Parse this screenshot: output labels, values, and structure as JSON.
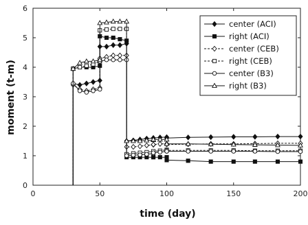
{
  "chart_data": {
    "type": "line",
    "xlabel": "time (day)",
    "ylabel": "moment (t-m)",
    "xlim": [
      0,
      200
    ],
    "ylim": [
      0,
      6
    ],
    "xticks": [
      0,
      50,
      100,
      150,
      200
    ],
    "yticks": [
      0,
      1,
      2,
      3,
      4,
      5,
      6
    ],
    "grid": false,
    "legend_position": "top-right",
    "series": [
      {
        "name": "center (ACI)",
        "line": "solid",
        "marker": "diamond-filled",
        "x": [
          30,
          30,
          35,
          40,
          45,
          50,
          50,
          55,
          60,
          65,
          70,
          70,
          75,
          80,
          85,
          90,
          90,
          95,
          100,
          100,
          116,
          133,
          150,
          166,
          183,
          200
        ],
        "y": [
          0,
          3.45,
          3.4,
          3.45,
          3.5,
          3.55,
          4.7,
          4.7,
          4.75,
          4.75,
          4.8,
          1.5,
          1.52,
          1.55,
          1.58,
          1.6,
          1.6,
          1.62,
          1.63,
          1.6,
          1.62,
          1.63,
          1.64,
          1.64,
          1.65,
          1.65
        ]
      },
      {
        "name": "right (ACI)",
        "line": "solid",
        "marker": "square-filled",
        "x": [
          30,
          30,
          35,
          40,
          45,
          50,
          50,
          55,
          60,
          65,
          70,
          70,
          75,
          80,
          85,
          90,
          90,
          95,
          100,
          100,
          116,
          133,
          150,
          166,
          183,
          200
        ],
        "y": [
          0,
          3.95,
          4.0,
          4.0,
          4.0,
          4.05,
          5.05,
          5.0,
          5.0,
          4.95,
          4.9,
          0.95,
          0.95,
          0.95,
          0.95,
          0.95,
          0.95,
          0.95,
          0.95,
          0.85,
          0.83,
          0.8,
          0.8,
          0.8,
          0.8,
          0.8
        ]
      },
      {
        "name": "center (CEB)",
        "line": "dashed",
        "marker": "diamond-open",
        "x": [
          30,
          30,
          35,
          40,
          45,
          50,
          50,
          55,
          60,
          65,
          70,
          70,
          75,
          80,
          85,
          90,
          90,
          95,
          100,
          100,
          116,
          133,
          150,
          166,
          183,
          200
        ],
        "y": [
          0,
          3.4,
          3.25,
          3.2,
          3.25,
          3.3,
          4.3,
          4.35,
          4.4,
          4.4,
          4.4,
          1.3,
          1.3,
          1.32,
          1.35,
          1.37,
          1.38,
          1.4,
          1.4,
          1.38,
          1.39,
          1.4,
          1.4,
          1.41,
          1.42,
          1.42
        ]
      },
      {
        "name": "right (CEB)",
        "line": "dashed",
        "marker": "square-open",
        "x": [
          30,
          30,
          35,
          40,
          45,
          50,
          50,
          55,
          60,
          65,
          70,
          70,
          75,
          80,
          85,
          90,
          90,
          95,
          100,
          100,
          116,
          133,
          150,
          166,
          183,
          200
        ],
        "y": [
          0,
          3.95,
          4.0,
          4.05,
          4.1,
          4.2,
          5.25,
          5.28,
          5.3,
          5.3,
          5.3,
          1.05,
          1.08,
          1.1,
          1.12,
          1.15,
          1.15,
          1.17,
          1.2,
          1.18,
          1.18,
          1.18,
          1.18,
          1.17,
          1.17,
          1.17
        ]
      },
      {
        "name": "center (B3)",
        "line": "solid",
        "marker": "circle-open",
        "x": [
          30,
          30,
          35,
          40,
          45,
          50,
          50,
          55,
          60,
          65,
          70,
          70,
          75,
          80,
          85,
          90,
          90,
          95,
          100,
          100,
          116,
          133,
          150,
          166,
          183,
          200
        ],
        "y": [
          0,
          3.45,
          3.2,
          3.15,
          3.2,
          3.25,
          4.2,
          4.25,
          4.25,
          4.25,
          4.25,
          1.0,
          1.02,
          1.03,
          1.05,
          1.07,
          1.1,
          1.12,
          1.15,
          1.15,
          1.15,
          1.15,
          1.15,
          1.15,
          1.14,
          1.14
        ]
      },
      {
        "name": "right (B3)",
        "line": "solid",
        "marker": "triangle-open",
        "x": [
          30,
          30,
          35,
          40,
          45,
          50,
          50,
          55,
          60,
          65,
          70,
          70,
          75,
          80,
          85,
          90,
          90,
          95,
          100,
          100,
          116,
          133,
          150,
          166,
          183,
          200
        ],
        "y": [
          0,
          3.95,
          4.15,
          4.2,
          4.2,
          4.25,
          5.5,
          5.52,
          5.55,
          5.55,
          5.55,
          1.5,
          1.5,
          1.5,
          1.52,
          1.53,
          1.55,
          1.55,
          1.55,
          1.4,
          1.4,
          1.39,
          1.38,
          1.37,
          1.36,
          1.35
        ]
      }
    ]
  },
  "colors": {
    "series": "#111111",
    "axis": "#222222",
    "background": "#ffffff"
  }
}
